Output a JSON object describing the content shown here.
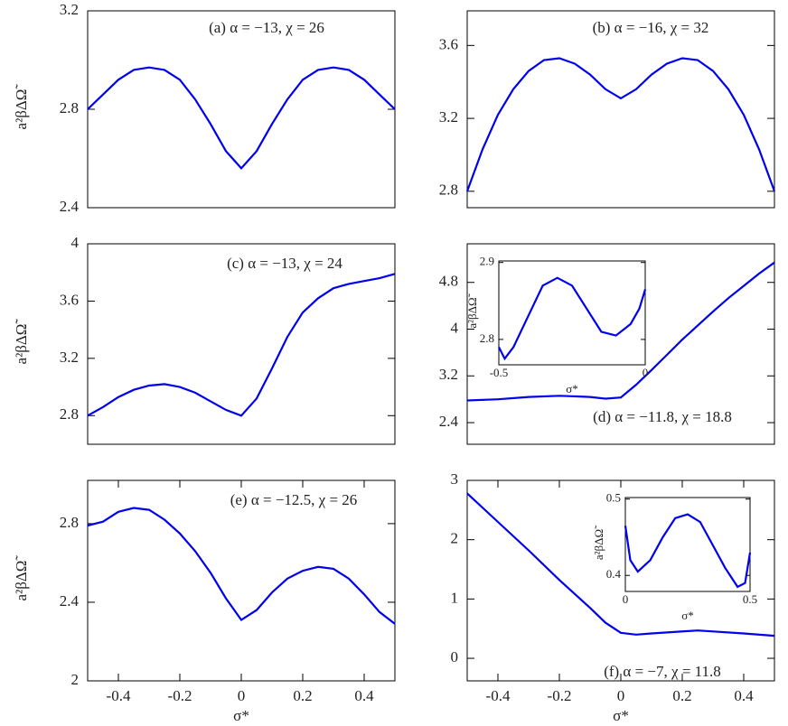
{
  "chart_data": [
    {
      "type": "line",
      "annotation": "(a) α = −13, χ = 26",
      "ylabel": "a²βΔΩ̃",
      "color": "#0000ee",
      "x": [
        -0.5,
        -0.45,
        -0.4,
        -0.35,
        -0.3,
        -0.25,
        -0.2,
        -0.15,
        -0.1,
        -0.05,
        0,
        0.05,
        0.1,
        0.15,
        0.2,
        0.25,
        0.3,
        0.35,
        0.4,
        0.45,
        0.5
      ],
      "values": [
        2.8,
        2.86,
        2.92,
        2.96,
        2.97,
        2.96,
        2.92,
        2.84,
        2.74,
        2.63,
        2.56,
        2.63,
        2.74,
        2.84,
        2.92,
        2.96,
        2.97,
        2.96,
        2.92,
        2.86,
        2.8
      ],
      "xlim": [
        -0.5,
        0.5
      ],
      "ylim": [
        2.4,
        3.2
      ],
      "yticks": [
        2.4,
        2.8,
        3.2
      ]
    },
    {
      "type": "line",
      "annotation": "(b) α = −16, χ = 32",
      "color": "#0000ee",
      "x": [
        -0.5,
        -0.45,
        -0.4,
        -0.35,
        -0.3,
        -0.25,
        -0.2,
        -0.15,
        -0.1,
        -0.05,
        0,
        0.05,
        0.1,
        0.15,
        0.2,
        0.25,
        0.3,
        0.35,
        0.4,
        0.45,
        0.5
      ],
      "values": [
        2.8,
        3.03,
        3.22,
        3.36,
        3.46,
        3.52,
        3.53,
        3.5,
        3.44,
        3.36,
        3.31,
        3.36,
        3.44,
        3.5,
        3.53,
        3.52,
        3.46,
        3.36,
        3.22,
        3.03,
        2.8
      ],
      "xlim": [
        -0.5,
        0.5
      ],
      "ylim": [
        2.71,
        3.79
      ],
      "yticks": [
        2.8,
        3.2,
        3.6
      ]
    },
    {
      "type": "line",
      "annotation": "(c) α = −13, χ = 24",
      "ylabel": "a²βΔΩ̃",
      "color": "#0000ee",
      "x": [
        -0.5,
        -0.45,
        -0.4,
        -0.35,
        -0.3,
        -0.25,
        -0.2,
        -0.15,
        -0.1,
        -0.05,
        0,
        0.05,
        0.1,
        0.15,
        0.2,
        0.25,
        0.3,
        0.35,
        0.4,
        0.45,
        0.5
      ],
      "values": [
        2.8,
        2.86,
        2.93,
        2.98,
        3.01,
        3.02,
        3.0,
        2.96,
        2.9,
        2.84,
        2.8,
        2.92,
        3.13,
        3.35,
        3.52,
        3.62,
        3.69,
        3.72,
        3.74,
        3.76,
        3.79
      ],
      "xlim": [
        -0.5,
        0.5
      ],
      "ylim": [
        2.6,
        4.0
      ],
      "yticks": [
        2.8,
        3.2,
        3.6,
        4
      ]
    },
    {
      "type": "line",
      "annotation": "(d) α = −11.8, χ = 18.8",
      "color": "#0000ee",
      "x": [
        -0.5,
        -0.4,
        -0.3,
        -0.2,
        -0.1,
        -0.05,
        0,
        0.05,
        0.1,
        0.15,
        0.2,
        0.25,
        0.3,
        0.35,
        0.4,
        0.45,
        0.5
      ],
      "values": [
        2.78,
        2.8,
        2.84,
        2.86,
        2.84,
        2.81,
        2.83,
        3.05,
        3.3,
        3.56,
        3.82,
        4.06,
        4.3,
        4.53,
        4.74,
        4.95,
        5.14
      ],
      "xlim": [
        -0.5,
        0.5
      ],
      "ylim": [
        2.03,
        5.46
      ],
      "yticks": [
        2.4,
        3.2,
        4,
        4.8
      ]
    },
    {
      "type": "line",
      "annotation": "(e) α = −12.5, χ = 26",
      "ylabel": "a²βΔΩ̃",
      "xlabel": "σ*",
      "color": "#0000ee",
      "x": [
        -0.5,
        -0.45,
        -0.4,
        -0.35,
        -0.3,
        -0.25,
        -0.2,
        -0.15,
        -0.1,
        -0.05,
        0,
        0.05,
        0.1,
        0.15,
        0.2,
        0.25,
        0.3,
        0.35,
        0.4,
        0.45,
        0.5
      ],
      "values": [
        2.79,
        2.81,
        2.86,
        2.88,
        2.87,
        2.82,
        2.75,
        2.66,
        2.55,
        2.42,
        2.31,
        2.36,
        2.45,
        2.52,
        2.56,
        2.58,
        2.57,
        2.52,
        2.44,
        2.35,
        2.29
      ],
      "xlim": [
        -0.5,
        0.5
      ],
      "ylim": [
        2,
        3.02
      ],
      "yticks": [
        2,
        2.4,
        2.8
      ],
      "xticks": [
        -0.4,
        -0.2,
        0,
        0.2,
        0.4
      ]
    },
    {
      "type": "line",
      "annotation": "(f) α = −7, χ = 11.8",
      "xlabel": "σ*",
      "color": "#0000ee",
      "x": [
        -0.5,
        -0.4,
        -0.3,
        -0.2,
        -0.1,
        -0.05,
        0,
        0.05,
        0.1,
        0.25,
        0.4,
        0.5
      ],
      "values": [
        2.78,
        2.3,
        1.82,
        1.32,
        0.85,
        0.6,
        0.43,
        0.4,
        0.42,
        0.47,
        0.42,
        0.38
      ],
      "xlim": [
        -0.5,
        0.5
      ],
      "ylim": [
        -0.38,
        3
      ],
      "yticks": [
        0,
        1,
        2,
        3
      ],
      "xticks": [
        -0.4,
        -0.2,
        0,
        0.2,
        0.4
      ]
    },
    {
      "type": "line",
      "ylabel": "a²βΔΩ̃",
      "xlabel": "σ*",
      "color": "#0000ee",
      "x": [
        -0.5,
        -0.48,
        -0.45,
        -0.4,
        -0.35,
        -0.3,
        -0.25,
        -0.2,
        -0.15,
        -0.1,
        -0.05,
        -0.02,
        0
      ],
      "values": [
        2.79,
        2.775,
        2.79,
        2.83,
        2.87,
        2.88,
        2.87,
        2.84,
        2.81,
        2.805,
        2.82,
        2.84,
        2.865
      ],
      "xlim": [
        -0.5,
        0
      ],
      "ylim": [
        2.767,
        2.902
      ],
      "yticks": [
        2.8,
        2.9
      ],
      "xticks": [
        -0.5,
        0
      ]
    },
    {
      "type": "line",
      "ylabel": "a²βΔΩ̃",
      "xlabel": "σ*",
      "color": "#0000ee",
      "x": [
        0,
        0.02,
        0.05,
        0.1,
        0.15,
        0.2,
        0.25,
        0.3,
        0.35,
        0.4,
        0.45,
        0.48,
        0.5
      ],
      "values": [
        0.465,
        0.42,
        0.405,
        0.42,
        0.45,
        0.475,
        0.48,
        0.47,
        0.44,
        0.41,
        0.385,
        0.39,
        0.43
      ],
      "xlim": [
        0,
        0.5
      ],
      "ylim": [
        0.379,
        0.502
      ],
      "yticks": [
        0.4,
        0.5
      ],
      "xticks": [
        0,
        0.5
      ]
    }
  ]
}
